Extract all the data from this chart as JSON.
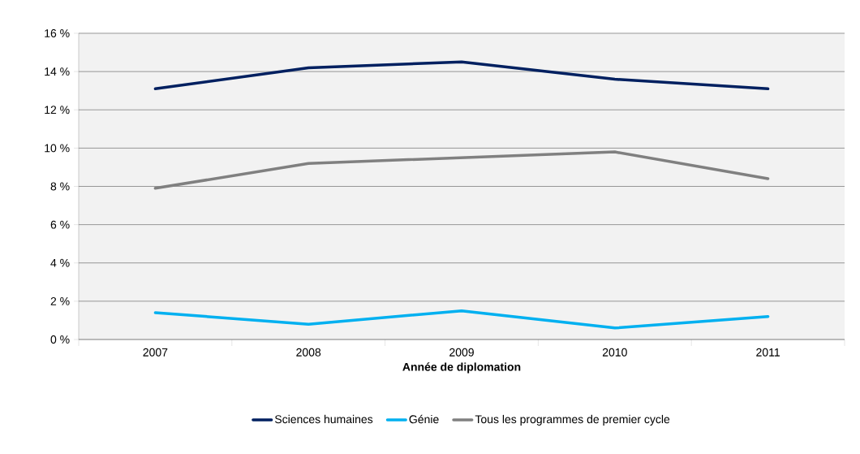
{
  "chart_data": {
    "type": "line",
    "xlabel": "Année de diplomation",
    "categories": [
      "2007",
      "2008",
      "2009",
      "2010",
      "2011"
    ],
    "series": [
      {
        "name": "Sciences humaines",
        "color": "#002060",
        "values": [
          13.1,
          14.2,
          14.5,
          13.6,
          13.1
        ]
      },
      {
        "name": "Génie",
        "color": "#00b0f0",
        "values": [
          1.4,
          0.8,
          1.5,
          0.6,
          1.2
        ]
      },
      {
        "name": "Tous les programmes de premier cycle",
        "color": "#808080",
        "values": [
          7.9,
          9.2,
          9.5,
          9.8,
          8.4
        ]
      }
    ],
    "ylim": [
      0,
      16
    ],
    "yticks": [
      {
        "value": 0,
        "label": "0 %"
      },
      {
        "value": 2,
        "label": "2 %"
      },
      {
        "value": 4,
        "label": "4 %"
      },
      {
        "value": 6,
        "label": "6 %"
      },
      {
        "value": 8,
        "label": "8 %"
      },
      {
        "value": 10,
        "label": "10 %"
      },
      {
        "value": 12,
        "label": "12 %"
      },
      {
        "value": 14,
        "label": "14 %"
      },
      {
        "value": 16,
        "label": "16 %"
      }
    ],
    "grid": "y",
    "legend": "bottom",
    "marker": "none",
    "line_style": "solid"
  }
}
